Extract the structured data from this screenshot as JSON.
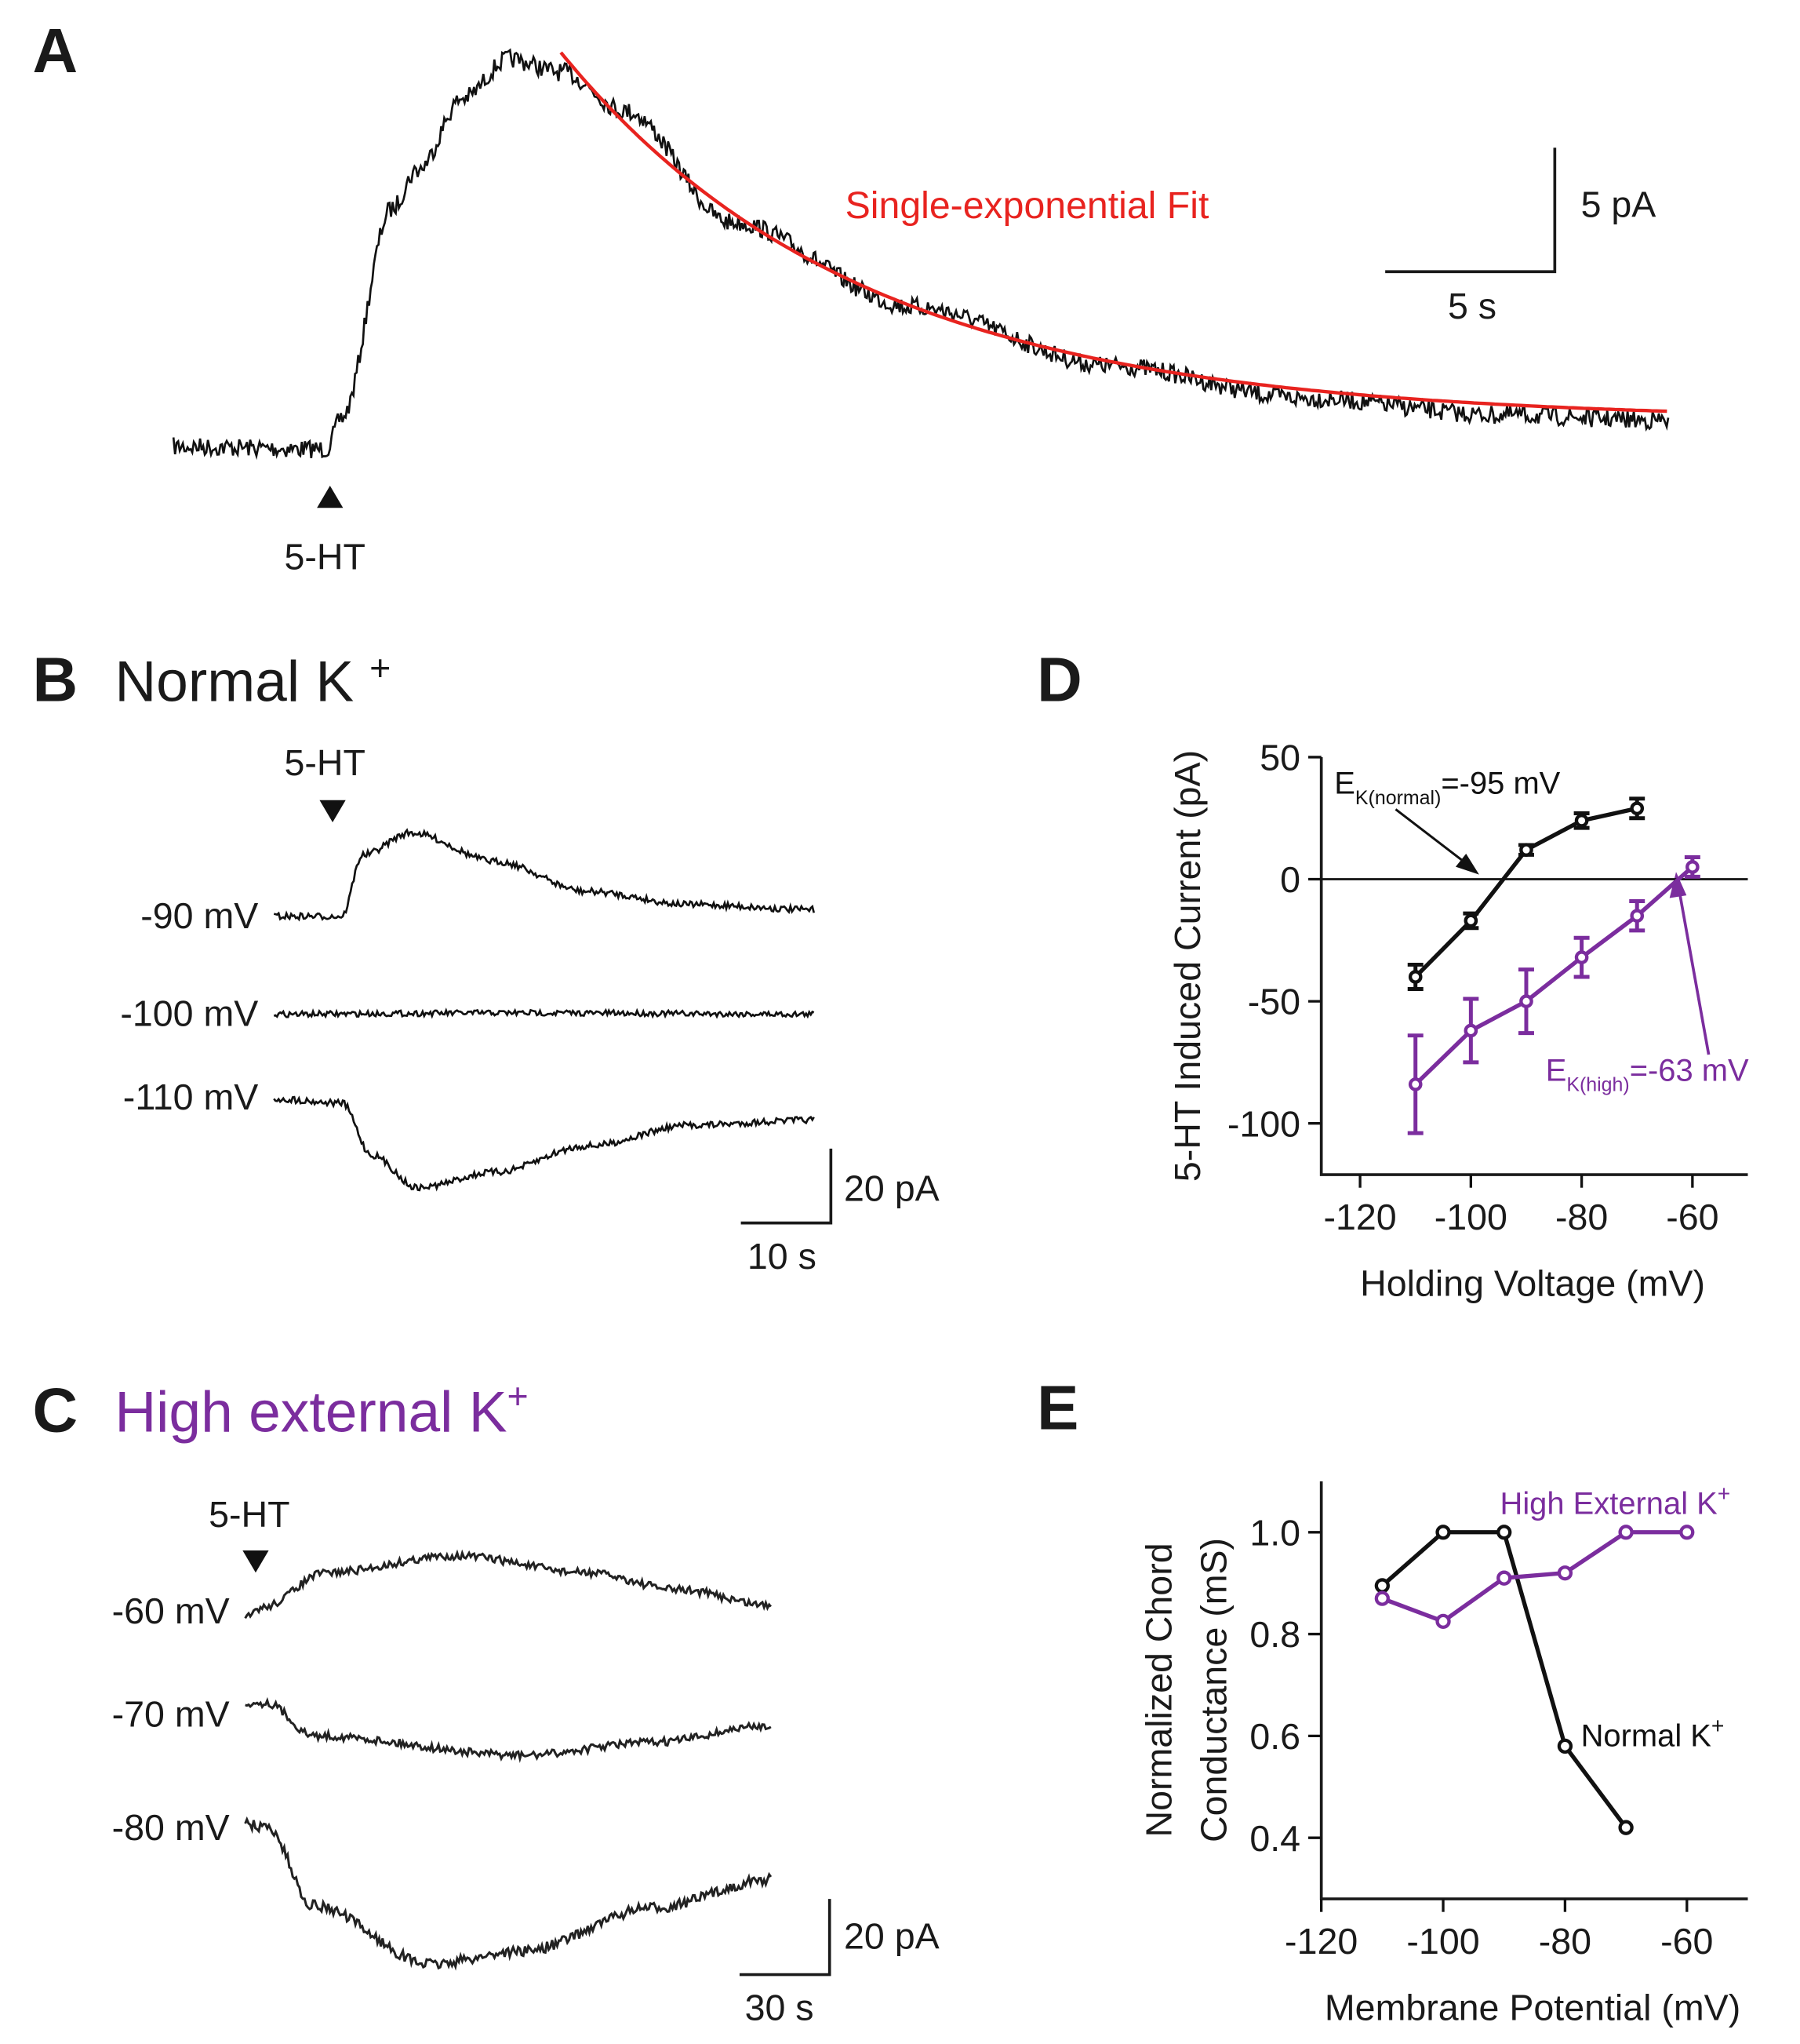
{
  "colors": {
    "normal": "#111111",
    "high": "#7B2D9E",
    "fit": "#E8231F"
  },
  "panel_a": {
    "letter": "A",
    "fit_label": "Single-exponential Fit",
    "stim_label": "5-HT",
    "scale_y": "5 pA",
    "scale_x": "5 s"
  },
  "panel_b": {
    "letter": "B",
    "title": "Normal K",
    "title_sup": "+",
    "stim_label": "5-HT",
    "traces": [
      "-90 mV",
      "-100 mV",
      "-110 mV"
    ],
    "scale_y": "20 pA",
    "scale_x": "10 s"
  },
  "panel_c": {
    "letter": "C",
    "title": "High external K",
    "title_sup": "+",
    "stim_label": "5-HT",
    "traces": [
      "-60 mV",
      "-70 mV",
      "-80 mV"
    ],
    "scale_y": "20 pA",
    "scale_x": "30 s"
  },
  "chart_data": [
    {
      "panel": "D",
      "type": "line",
      "xlabel": "Holding Voltage (mV)",
      "ylabel": "5-HT Induced Current (pA)",
      "xlim": [
        -127,
        -50
      ],
      "ylim": [
        -121,
        50
      ],
      "xticks": [
        -120,
        -100,
        -80,
        -60
      ],
      "yticks": [
        50,
        0,
        -50,
        -100
      ],
      "zero_line": true,
      "series": [
        {
          "name": "Normal K+",
          "x": [
            -110,
            -100,
            -90,
            -80,
            -70
          ],
          "y": [
            -40,
            -17,
            12,
            24,
            29
          ],
          "err": [
            5,
            3,
            2,
            3,
            4
          ]
        },
        {
          "name": "High external K+",
          "x": [
            -110,
            -100,
            -90,
            -80,
            -70,
            -60
          ],
          "y": [
            -84,
            -62,
            -50,
            -32,
            -15,
            5
          ],
          "err": [
            20,
            13,
            13,
            8,
            6,
            4
          ]
        }
      ],
      "annotations": [
        {
          "main": "E",
          "sub": "K(normal)",
          "rest": "=-95 mV",
          "x": -95
        },
        {
          "main": "E",
          "sub": "K(high)",
          "rest": "=-63 mV",
          "x": -63
        }
      ]
    },
    {
      "panel": "E",
      "type": "line",
      "xlabel": "Membrane Potential (mV)",
      "ylabel": [
        "Normalized Chord",
        "Conductance (mS)"
      ],
      "xlim": [
        -120,
        -50
      ],
      "ylim": [
        0.28,
        1.1
      ],
      "xticks": [
        -120,
        -100,
        -80,
        -60
      ],
      "yticks": [
        1.0,
        0.8,
        0.6,
        0.4
      ],
      "ytick_labels": [
        "1.0",
        "0.8",
        "0.6",
        "0.4"
      ],
      "series": [
        {
          "name": "Normal K",
          "sup": "+",
          "x": [
            -110,
            -100,
            -90,
            -80,
            -70
          ],
          "y": [
            0.895,
            1.0,
            1.0,
            0.58,
            0.42
          ]
        },
        {
          "name": "High External K",
          "sup": "+",
          "x": [
            -110,
            -100,
            -90,
            -80,
            -70,
            -60
          ],
          "y": [
            0.87,
            0.825,
            0.91,
            0.92,
            1.0,
            1.0
          ]
        }
      ]
    }
  ]
}
